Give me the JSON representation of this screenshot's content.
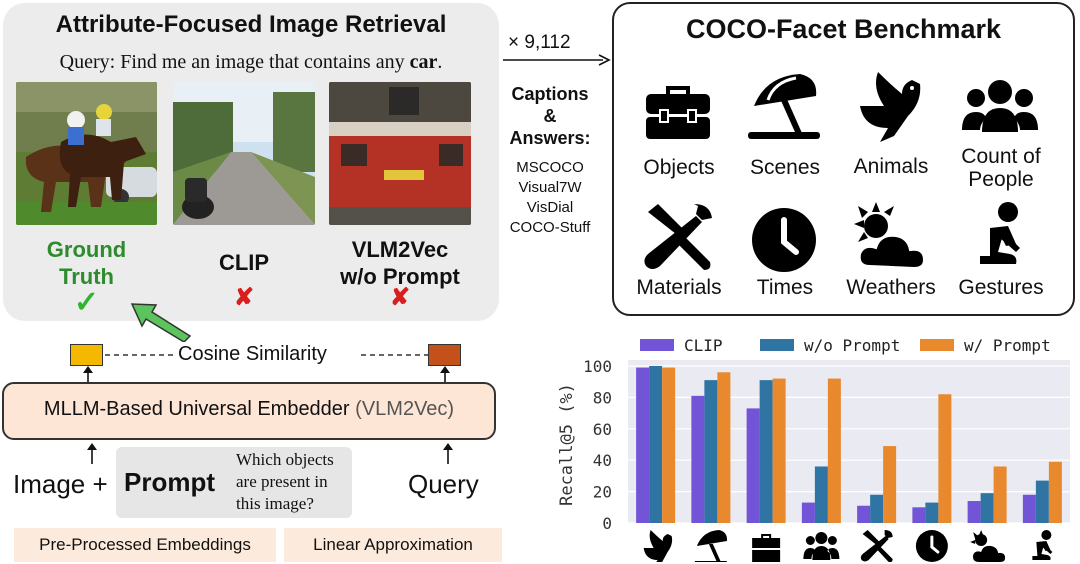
{
  "retrieval": {
    "title": "Attribute-Focused Image Retrieval",
    "query_prefix": "Query: Find me an image that contains any ",
    "query_target": "car",
    "query_suffix": ".",
    "candidates": [
      {
        "label_line1": "Ground",
        "label_line2": "Truth",
        "result": "✓",
        "correct": true
      },
      {
        "label_line1": "CLIP",
        "label_line2": "",
        "result": "✘",
        "correct": false
      },
      {
        "label_line1": "VLM2Vec",
        "label_line2": "w/o Prompt",
        "result": "✘",
        "correct": false
      }
    ]
  },
  "flow": {
    "multiplier": "× 9,112",
    "captions_line1": "Captions",
    "captions_line2": "&",
    "captions_line3": "Answers:",
    "sources": [
      "MSCOCO",
      "Visual7W",
      "VisDial",
      "COCO-Stuff"
    ]
  },
  "benchmark": {
    "title": "COCO-Facet Benchmark",
    "categories": [
      {
        "label_line1": "Objects",
        "label_line2": "",
        "icon": "toolbox-icon"
      },
      {
        "label_line1": "Scenes",
        "label_line2": "",
        "icon": "umbrella-beach-icon"
      },
      {
        "label_line1": "Animals",
        "label_line2": "",
        "icon": "dove-icon"
      },
      {
        "label_line1": "Count of",
        "label_line2": "People",
        "icon": "people-group-icon"
      },
      {
        "label_line1": "Materials",
        "label_line2": "",
        "icon": "tools-icon"
      },
      {
        "label_line1": "Times",
        "label_line2": "",
        "icon": "clock-icon"
      },
      {
        "label_line1": "Weathers",
        "label_line2": "",
        "icon": "cloud-sun-icon"
      },
      {
        "label_line1": "Gestures",
        "label_line2": "",
        "icon": "kneeling-person-icon"
      }
    ]
  },
  "pipeline": {
    "cosine_label": "Cosine Similarity",
    "embedder_label": "MLLM-Based Universal Embedder",
    "embedder_model": "(VLM2Vec)",
    "image_plus": "Image +",
    "prompt_label": "Prompt",
    "prompt_question": "Which objects are present in this image?",
    "query_label": "Query",
    "badges": [
      "Pre-Processed Embeddings",
      "Linear Approximation"
    ],
    "colors": {
      "image_embedding": "#f5b800",
      "query_embedding": "#c4501a",
      "embedder_fill": "#fde6d6",
      "green_arrow": "#5cc45c"
    }
  },
  "chart_data": {
    "type": "bar",
    "title": "",
    "xlabel": "",
    "ylabel": "Recall@5 (%)",
    "ylim": [
      0,
      100
    ],
    "yticks": [
      0,
      20,
      40,
      60,
      80,
      100
    ],
    "categories": [
      "Animals",
      "Scenes",
      "Objects",
      "Count of People",
      "Materials",
      "Times",
      "Weathers",
      "Gestures"
    ],
    "category_icons": [
      "dove-icon",
      "umbrella-beach-icon",
      "toolbox-icon",
      "people-group-icon",
      "tools-icon",
      "clock-icon",
      "cloud-sun-icon",
      "kneeling-person-icon"
    ],
    "legend_position": "top",
    "grid": "horizontal",
    "series": [
      {
        "name": "CLIP",
        "color": "#7155d6",
        "values": [
          99,
          81,
          73,
          13,
          11,
          10,
          14,
          18
        ]
      },
      {
        "name": "w/o Prompt",
        "color": "#2f74a3",
        "values": [
          100,
          91,
          91,
          36,
          18,
          13,
          19,
          27
        ]
      },
      {
        "name": "w/ Prompt",
        "color": "#e8892e",
        "values": [
          99,
          96,
          92,
          92,
          49,
          82,
          36,
          39
        ]
      }
    ]
  }
}
